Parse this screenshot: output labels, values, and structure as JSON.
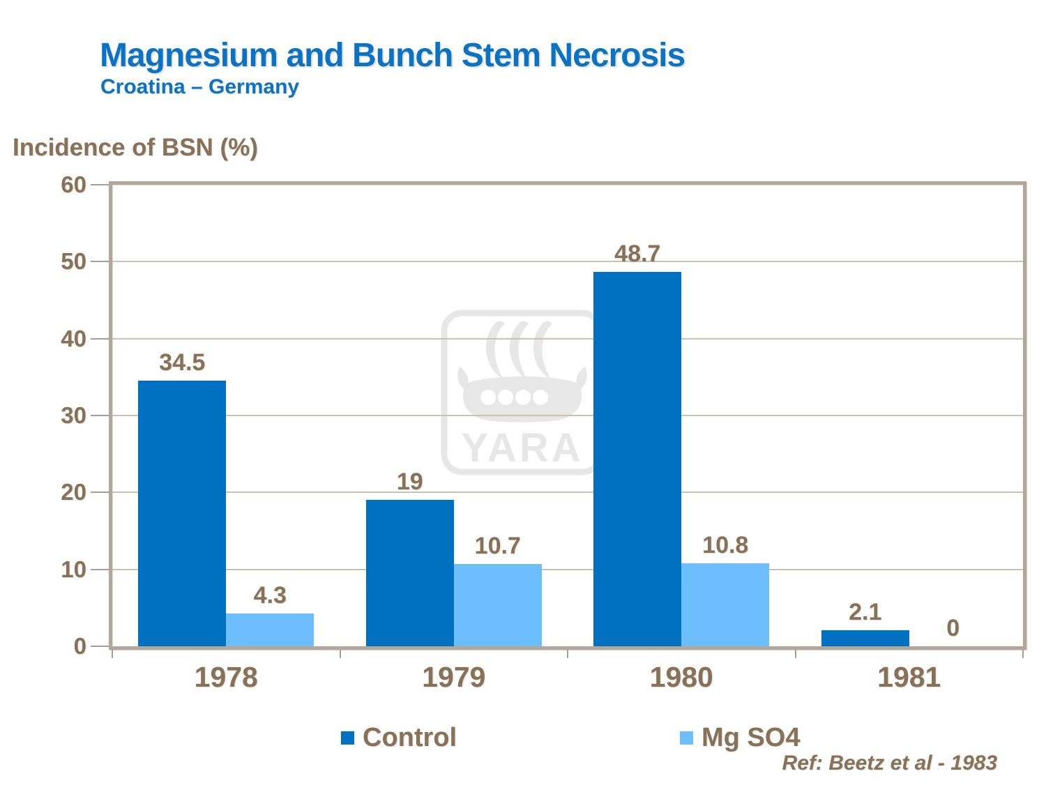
{
  "slide": {
    "title": "Magnesium and Bunch Stem Necrosis",
    "subtitle": "Croatina – Germany",
    "axis_title": "Incidence of BSN (%)",
    "reference": "Ref: Beetz et al - 1983",
    "watermark_text": "YARA"
  },
  "colors": {
    "title_blue": "#0b72c4",
    "text_brown": "#877157",
    "control_bar": "#0070c0",
    "mgso4_bar": "#6cbefc",
    "frame_tan": "#b2a79a",
    "gridline_tan": "#ccc1b2",
    "watermark_gray": "#e7e7e7"
  },
  "chart_data": {
    "type": "bar",
    "title": "Magnesium and Bunch Stem Necrosis",
    "subtitle": "Croatina – Germany",
    "xlabel": "",
    "ylabel": "Incidence of BSN (%)",
    "categories": [
      "1978",
      "1979",
      "1980",
      "1981"
    ],
    "series": [
      {
        "name": "Control",
        "color": "#0070c0",
        "values": [
          34.5,
          19,
          48.7,
          2.1
        ],
        "labels": [
          "34.5",
          "19",
          "48.7",
          "2.1"
        ]
      },
      {
        "name": "Mg SO4",
        "color": "#6cbefc",
        "values": [
          4.3,
          10.7,
          10.8,
          0
        ],
        "labels": [
          "4.3",
          "10.7",
          "10.8",
          "0"
        ]
      }
    ],
    "ylim": [
      0,
      60
    ],
    "ytick_step": 10,
    "yticks": [
      "0",
      "10",
      "20",
      "30",
      "40",
      "50",
      "60"
    ],
    "grid": true,
    "legend_position": "bottom",
    "reference": "Ref: Beetz et al - 1983"
  }
}
